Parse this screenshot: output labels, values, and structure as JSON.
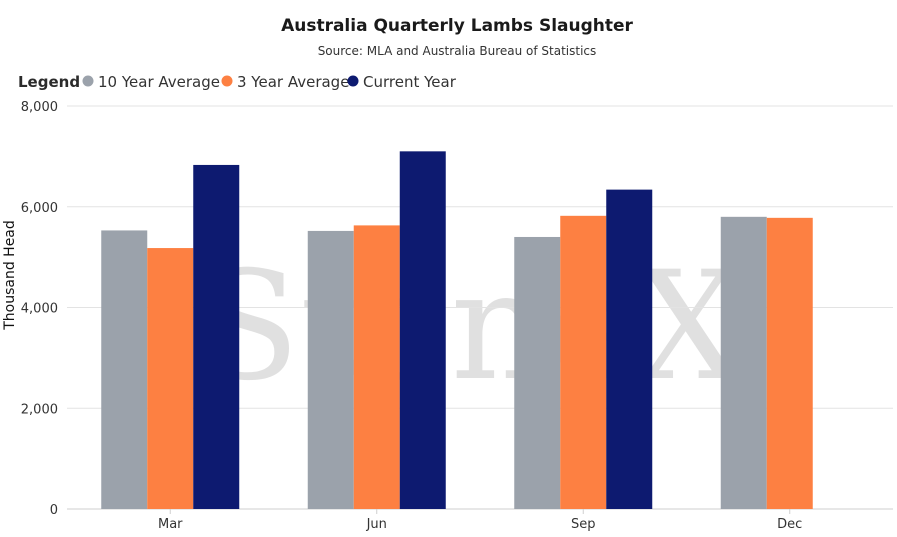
{
  "chart_data": {
    "type": "bar",
    "title": "Australia Quarterly Lambs Slaughter",
    "subtitle": "Source: MLA and Australia Bureau of Statistics",
    "legend_title": "Legend",
    "legend_placement": "top-left",
    "ylabel": "Thousand Head",
    "xlabel": "",
    "ylim": [
      0,
      8000
    ],
    "yticks": [
      "0",
      "2,000",
      "4,000",
      "6,000",
      "8,000"
    ],
    "ytick_values": [
      0,
      2000,
      4000,
      6000,
      8000
    ],
    "grid": true,
    "categories": [
      "Mar",
      "Jun",
      "Sep",
      "Dec"
    ],
    "series": [
      {
        "name": "10 Year Average",
        "color": "#9ba2ab",
        "values": [
          5530,
          5520,
          5400,
          5800
        ]
      },
      {
        "name": "3 Year Average",
        "color": "#fd8042",
        "values": [
          5180,
          5630,
          5820,
          5780
        ]
      },
      {
        "name": "Current Year",
        "color": "#0d1a70",
        "values": [
          6830,
          7100,
          6340,
          null
        ]
      }
    ]
  }
}
